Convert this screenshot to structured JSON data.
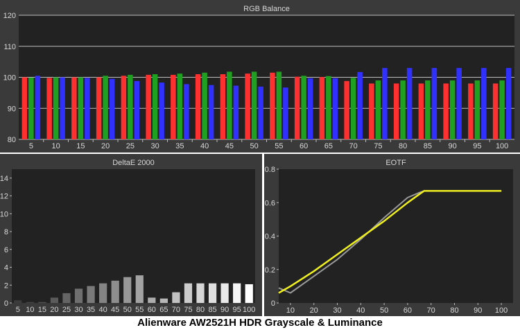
{
  "caption": "Alienware AW2521H HDR Grayscale & Luminance",
  "chart_data": [
    {
      "type": "bar",
      "title": "RGB Balance",
      "categories": [
        "5",
        "10",
        "15",
        "20",
        "25",
        "30",
        "35",
        "40",
        "45",
        "50",
        "55",
        "60",
        "65",
        "70",
        "75",
        "80",
        "85",
        "90",
        "95",
        "100"
      ],
      "ylim": [
        80,
        120
      ],
      "yticks": [
        80,
        90,
        100,
        110,
        120
      ],
      "grid": true,
      "series": [
        {
          "color": "#ff3030",
          "values": [
            100.0,
            99.8,
            100.0,
            100.0,
            100.5,
            100.8,
            100.8,
            101.0,
            101.0,
            101.2,
            101.5,
            100.2,
            100.1,
            98.8,
            98.0,
            98.0,
            98.0,
            98.0,
            98.0,
            98.0
          ]
        },
        {
          "color": "#20a020",
          "values": [
            99.9,
            100.0,
            100.0,
            100.5,
            100.8,
            101.0,
            101.2,
            101.5,
            101.8,
            101.8,
            101.8,
            100.5,
            100.4,
            99.8,
            99.0,
            99.0,
            99.0,
            99.0,
            99.0,
            99.0
          ]
        },
        {
          "color": "#3030ff",
          "values": [
            100.5,
            100.0,
            99.8,
            99.5,
            98.8,
            98.3,
            97.8,
            97.5,
            97.3,
            97.0,
            96.7,
            99.7,
            99.7,
            101.7,
            103.0,
            103.0,
            103.0,
            103.0,
            103.0,
            103.0
          ]
        }
      ]
    },
    {
      "type": "bar",
      "title": "DeltaE 2000",
      "categories": [
        "5",
        "10",
        "15",
        "20",
        "25",
        "30",
        "35",
        "40",
        "45",
        "50",
        "55",
        "60",
        "65",
        "70",
        "75",
        "80",
        "85",
        "90",
        "95",
        "100"
      ],
      "ylim": [
        0,
        15
      ],
      "yticks": [
        0,
        2,
        4,
        6,
        8,
        10,
        12,
        14
      ],
      "grid": false,
      "values": [
        0.3,
        0.1,
        0.1,
        0.6,
        1.1,
        1.6,
        1.9,
        2.2,
        2.5,
        2.9,
        3.1,
        0.6,
        0.5,
        1.2,
        2.2,
        2.2,
        2.2,
        2.2,
        2.2,
        2.1
      ]
    },
    {
      "type": "line",
      "title": "EOTF",
      "x": [
        5,
        10,
        20,
        30,
        40,
        50,
        60,
        65,
        67,
        70,
        80,
        90,
        100
      ],
      "xlim": [
        5,
        105
      ],
      "ylim": [
        0,
        0.8
      ],
      "xticks": [
        10,
        20,
        30,
        40,
        50,
        60,
        70,
        80,
        90,
        100
      ],
      "yticks": [
        0,
        0.2,
        0.4,
        0.6,
        0.8
      ],
      "grid": false,
      "series": [
        {
          "color": "#9a9a9a",
          "values": [
            0.09,
            0.06,
            0.16,
            0.26,
            0.38,
            0.51,
            0.63,
            0.66,
            0.67,
            0.67,
            0.67,
            0.67,
            0.67
          ]
        },
        {
          "color": "#f0f020",
          "values": [
            0.06,
            0.1,
            0.19,
            0.29,
            0.39,
            0.49,
            0.6,
            0.65,
            0.67,
            0.67,
            0.67,
            0.67,
            0.67
          ]
        }
      ]
    }
  ]
}
